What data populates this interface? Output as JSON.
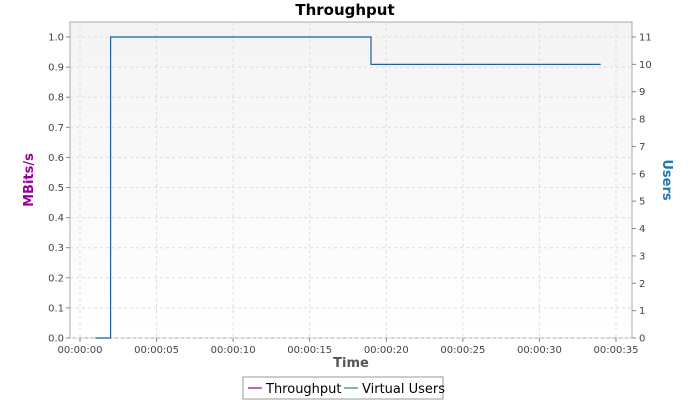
{
  "chart_data": {
    "type": "line",
    "title": "Throughput",
    "xlabel": "Time",
    "ylabel_left": "MBits/s",
    "ylabel_right": "Users",
    "x_ticks": [
      "00:00:00",
      "00:00:05",
      "00:00:10",
      "00:00:15",
      "00:00:20",
      "00:00:25",
      "00:00:30",
      "00:00:35"
    ],
    "xlim": [
      0,
      35
    ],
    "ylim_left": [
      0,
      1.0
    ],
    "y_ticks_left": [
      "0.0",
      "0.1",
      "0.2",
      "0.3",
      "0.4",
      "0.5",
      "0.6",
      "0.7",
      "0.8",
      "0.9",
      "1.0"
    ],
    "ylim_right": [
      0,
      11
    ],
    "y_ticks_right": [
      "0",
      "1",
      "2",
      "3",
      "4",
      "5",
      "6",
      "7",
      "8",
      "9",
      "10",
      "11"
    ],
    "grid": true,
    "legend_position": "bottom",
    "series": [
      {
        "name": "Throughput",
        "axis": "left",
        "color": "#990099",
        "x": [],
        "y": []
      },
      {
        "name": "Virtual Users",
        "axis": "right",
        "color": "#1f5fa0",
        "x": [
          1,
          2,
          2,
          19,
          19,
          34
        ],
        "y": [
          0,
          0,
          11,
          11,
          10,
          10
        ]
      }
    ]
  },
  "colors": {
    "left_axis_title": "#990099",
    "right_axis_title": "#1f77b4",
    "legend_throughput": "#990099",
    "legend_virtual_users": "#2e8b57"
  }
}
